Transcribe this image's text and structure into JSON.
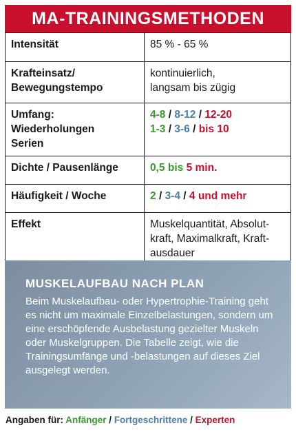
{
  "header": {
    "title": "MA-TRAININGSMETHODEN"
  },
  "rows": [
    {
      "label": "Intensität",
      "value": "85 % - 65 %"
    },
    {
      "label_lines": [
        "Krafteinsatz/",
        "Bewegungstempo"
      ],
      "value_lines": [
        "kontinuierlich,",
        "langsam bis zügig"
      ]
    },
    {
      "label_lines": [
        "Umfang: Wiederholungen",
        "Serien"
      ],
      "reps": [
        "4-8",
        "8-12",
        "12-20"
      ],
      "sets": [
        "1-3",
        "3-6",
        "bis 10"
      ],
      "separator": "/"
    },
    {
      "label": "Dichte / Pausenlänge",
      "pause_from": "0,5",
      "pause_mid": "bis",
      "pause_to": "5 min."
    },
    {
      "label": "Häufigkeit / Woche",
      "freq": [
        "2",
        "3-4",
        "4 und mehr"
      ]
    },
    {
      "label": "Effekt",
      "value_lines": [
        "Muskelquantität, Absolut-",
        "kraft, Maximalkraft, Kraft-",
        "ausdauer"
      ]
    }
  ],
  "plan": {
    "title": "MUSKELAUFBAU NACH PLAN",
    "text": "Beim Muskelaufbau- oder Hypertrophie-Training geht es nicht um maximale Einzelbelastungen, sondern um eine erschöpfende Ausbelastung gezielter Muskeln oder Muskelgruppen. Die Tabelle zeigt, wie die Trainingsumfänge und -belastungen auf dieses Ziel ausgelegt werden."
  },
  "footer": {
    "prefix": "Angaben für:",
    "beginner": "Anfänger",
    "advanced": "Fortgeschrittene",
    "expert": "Experten",
    "separator": "/"
  },
  "colors": {
    "header_red": "#c8102e",
    "beginner_green": "#3a9a2e",
    "advanced_blue": "#4a7fa8",
    "expert_red": "#c8102e",
    "panel_blue_grey": "#8fa3b7"
  }
}
